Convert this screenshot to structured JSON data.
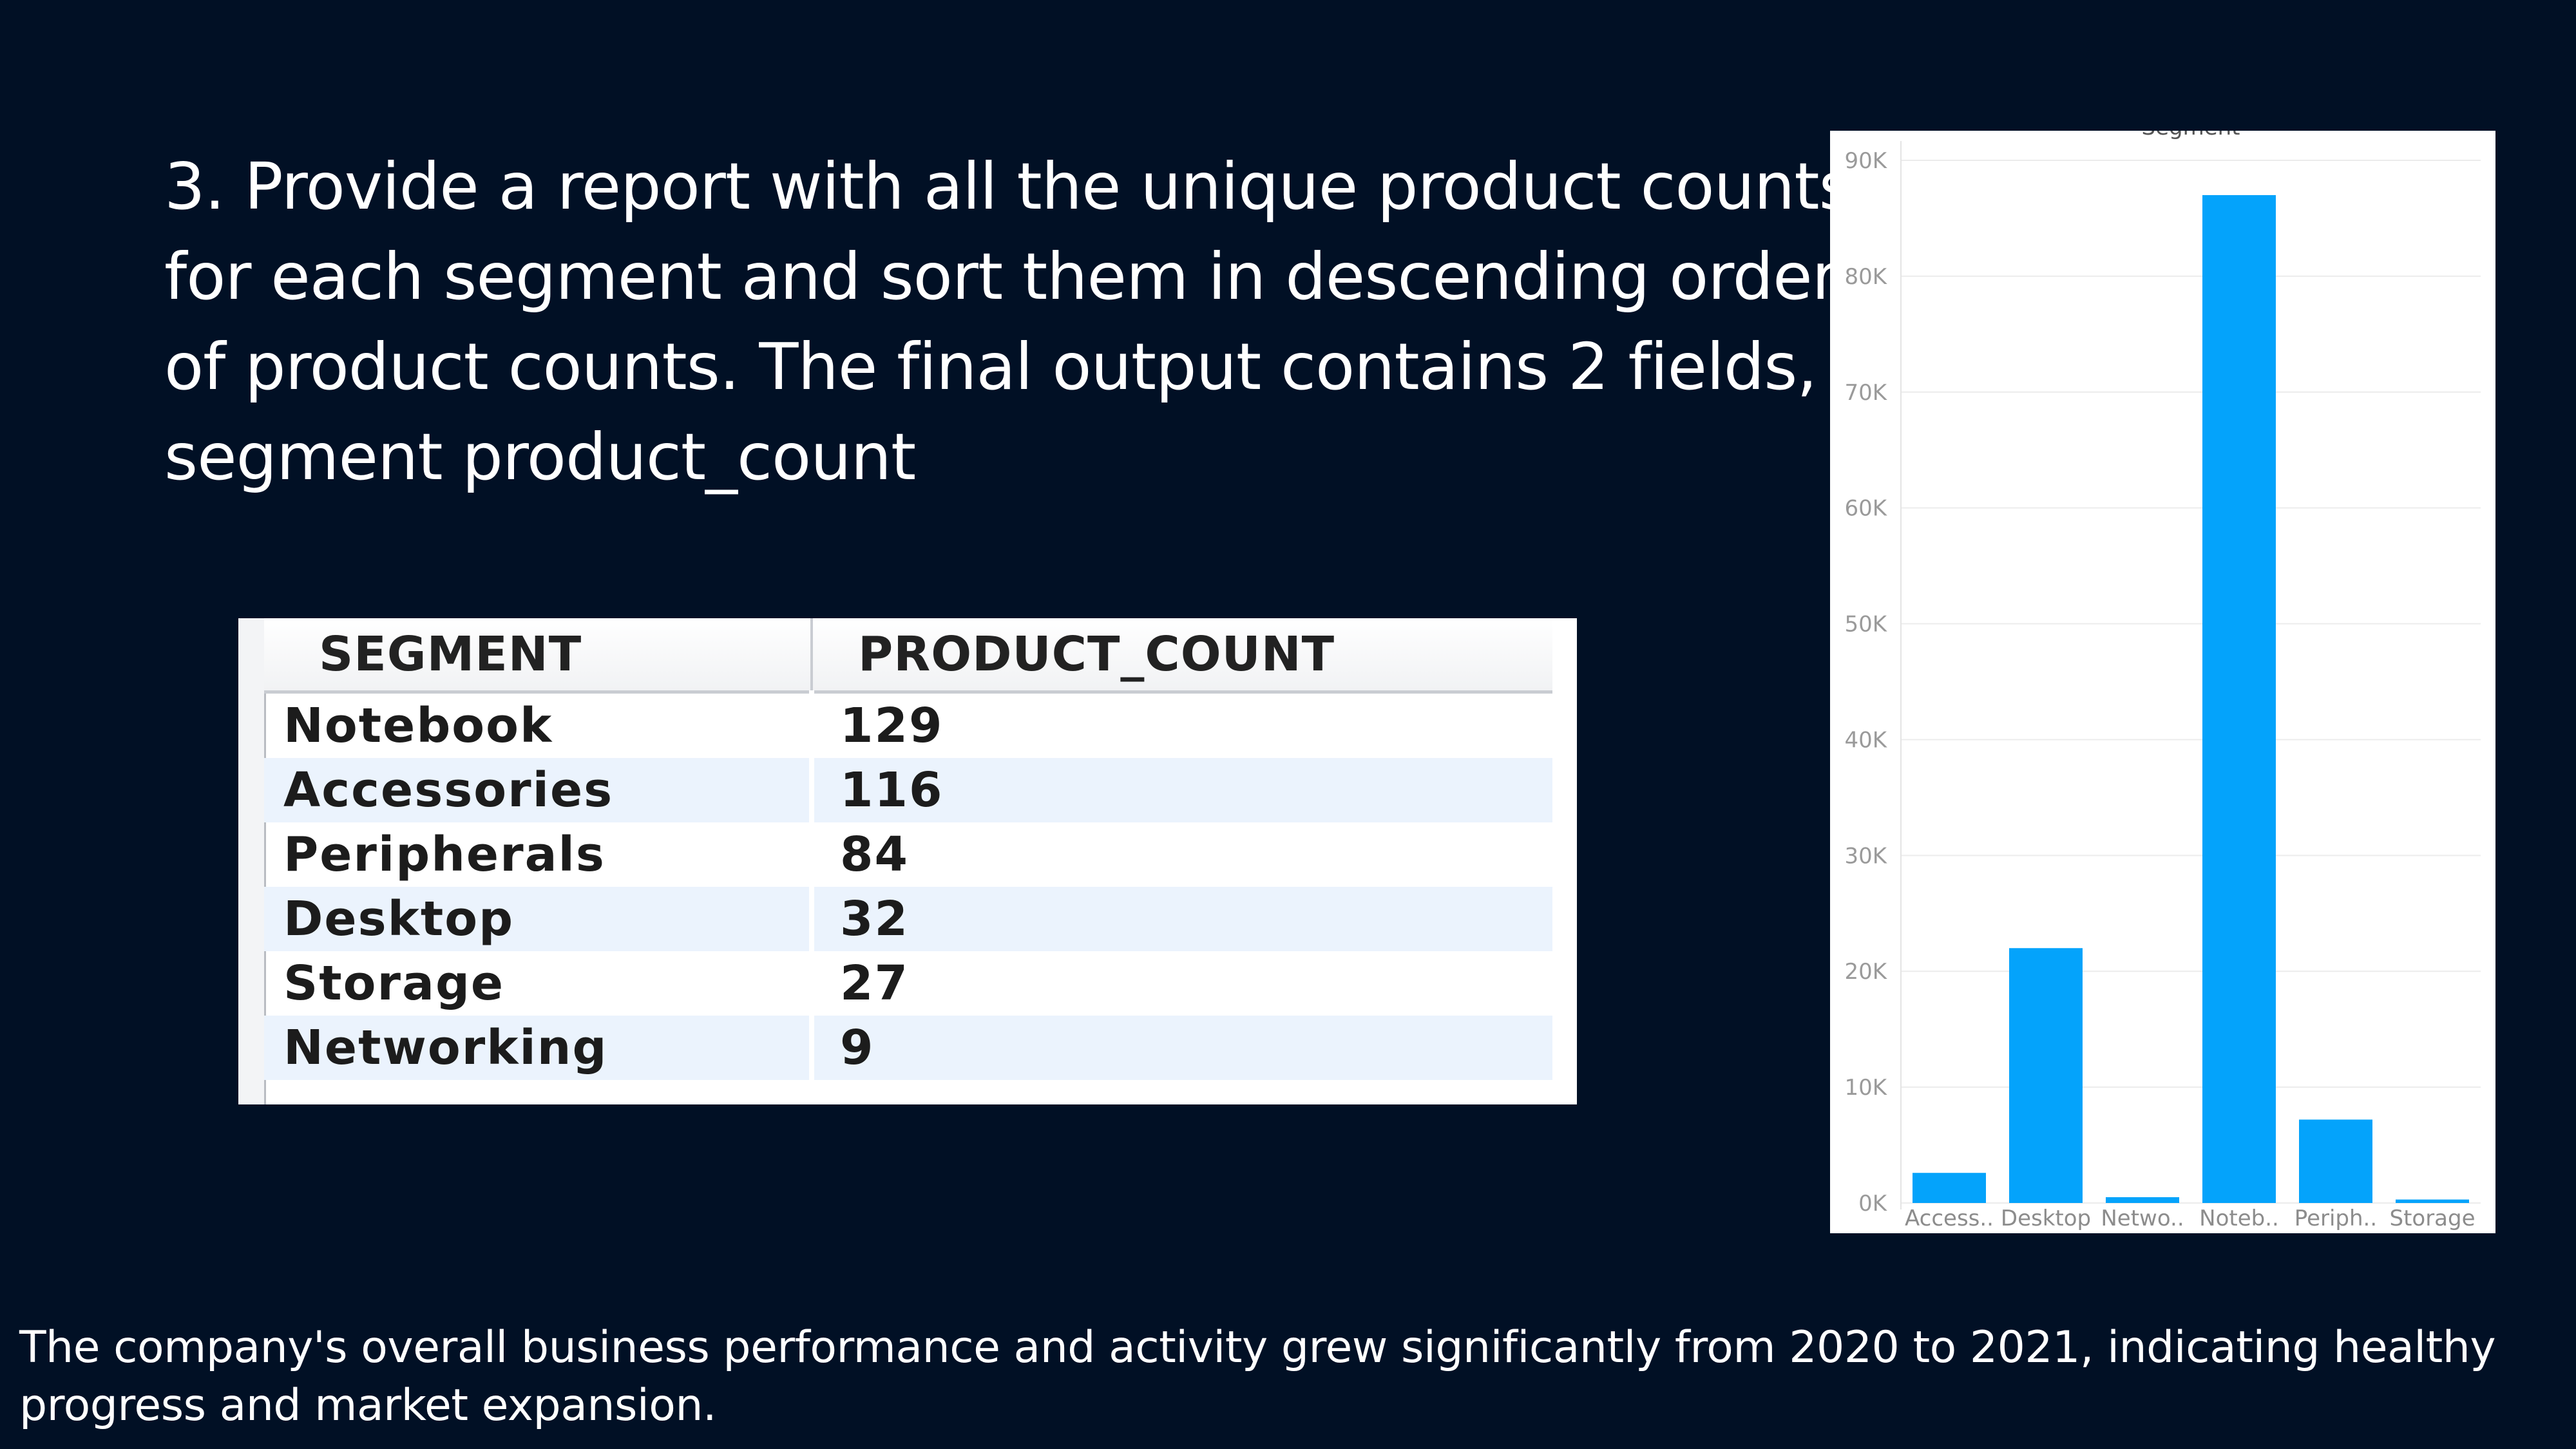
{
  "slide": {
    "heading_lines": [
      "3. Provide a report with all the unique product counts",
      "for each segment and sort them in descending order",
      "of product counts. The final output contains 2 fields,",
      "segment product_count"
    ],
    "footer_note": "The company's overall business performance and activity grew significantly from 2020 to 2021, indicating healthy progress and market expansion.",
    "background_color": "#011025"
  },
  "result_table": {
    "columns": [
      "SEGMENT",
      "PRODUCT_COUNT"
    ],
    "rows": [
      {
        "segment": "Notebook",
        "product_count": "129"
      },
      {
        "segment": "Accessories",
        "product_count": "116"
      },
      {
        "segment": "Peripherals",
        "product_count": "84"
      },
      {
        "segment": "Desktop",
        "product_count": "32"
      },
      {
        "segment": "Storage",
        "product_count": "27"
      },
      {
        "segment": "Networking",
        "product_count": "9"
      }
    ],
    "alt_row_color": "#ebf3fd"
  },
  "chart_data": {
    "type": "bar",
    "title": "Segment",
    "xlabel": "",
    "ylabel": "",
    "categories": [
      "Access..",
      "Desktop",
      "Netwo..",
      "Noteb..",
      "Periph..",
      "Storage"
    ],
    "values": [
      2600,
      22000,
      500,
      87000,
      7200,
      300
    ],
    "ylim": [
      0,
      90000
    ],
    "yticks": [
      0,
      10000,
      20000,
      30000,
      40000,
      50000,
      60000,
      70000,
      80000,
      90000
    ],
    "ytick_labels": [
      "0K",
      "10K",
      "20K",
      "30K",
      "40K",
      "50K",
      "60K",
      "70K",
      "80K",
      "90K"
    ],
    "bar_color": "#04a3fb",
    "grid": true,
    "legend": "none"
  }
}
